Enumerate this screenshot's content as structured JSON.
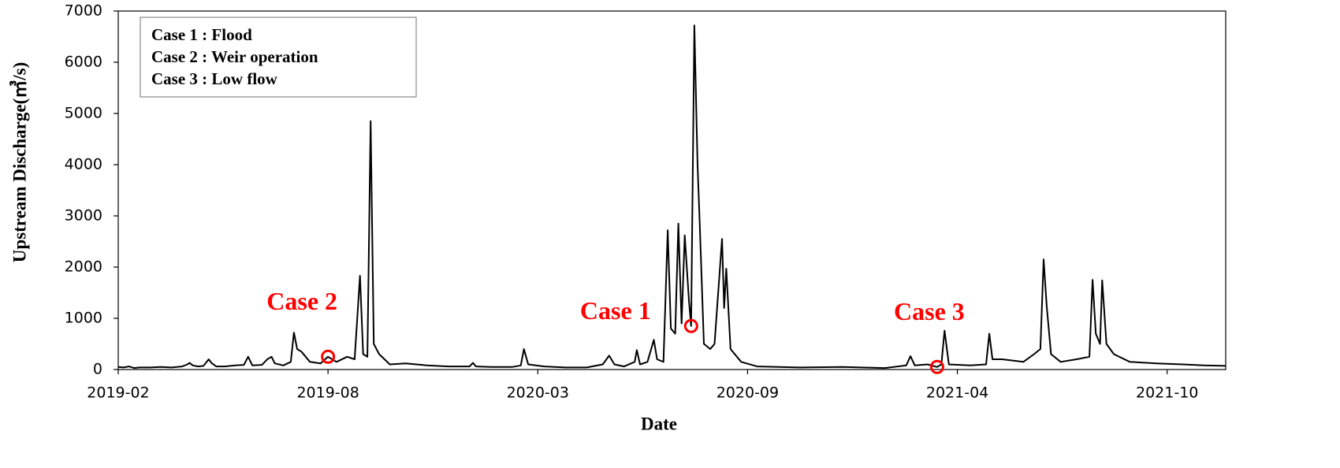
{
  "chart_data": {
    "type": "line",
    "y_label": "Upstream Discharge(㎥/s)",
    "x_label": "Date",
    "legend_text": [
      "Case 1 : Flood",
      "Case 2 : Weir operation",
      "Case 3 : Low flow"
    ],
    "xlim": [
      0,
      1040
    ],
    "xticks": [
      {
        "value": 0,
        "label": "2019-02"
      },
      {
        "value": 197,
        "label": "2019-08"
      },
      {
        "value": 394,
        "label": "2020-03"
      },
      {
        "value": 591,
        "label": "2020-09"
      },
      {
        "value": 788,
        "label": "2021-04"
      },
      {
        "value": 985,
        "label": "2021-10"
      }
    ],
    "ylim": [
      0,
      7000
    ],
    "yticks": [
      0,
      1000,
      2000,
      3000,
      4000,
      5000,
      6000,
      7000
    ],
    "series": [
      {
        "color": "#000000",
        "x": [
          0,
          5,
          10,
          15,
          20,
          30,
          40,
          50,
          60,
          65,
          67,
          70,
          75,
          80,
          85,
          88,
          92,
          100,
          110,
          118,
          122,
          126,
          135,
          140,
          144,
          147,
          155,
          162,
          165,
          168,
          172,
          180,
          190,
          197,
          205,
          215,
          222,
          227,
          230,
          234,
          237,
          240,
          245,
          255,
          270,
          290,
          310,
          330,
          333,
          336,
          350,
          370,
          378,
          381,
          385,
          400,
          420,
          440,
          455,
          461,
          466,
          475,
          485,
          487,
          490,
          497,
          503,
          506,
          512,
          516,
          519,
          523,
          526,
          529,
          532,
          536,
          538,
          541,
          544,
          546,
          550,
          556,
          560,
          567,
          569,
          571,
          575,
          585,
          600,
          640,
          680,
          720,
          740,
          744,
          748,
          760,
          769,
          773,
          776,
          780,
          800,
          815,
          818,
          821,
          830,
          850,
          860,
          866,
          869,
          872,
          876,
          885,
          900,
          912,
          915,
          918,
          922,
          924,
          928,
          935,
          950,
          975,
          1000,
          1020,
          1040
        ],
        "values": [
          50,
          40,
          60,
          30,
          40,
          40,
          50,
          40,
          60,
          100,
          130,
          80,
          60,
          70,
          200,
          120,
          60,
          60,
          80,
          90,
          250,
          80,
          90,
          200,
          250,
          120,
          80,
          150,
          720,
          400,
          350,
          150,
          120,
          250,
          150,
          250,
          200,
          1830,
          300,
          250,
          4850,
          500,
          300,
          100,
          120,
          80,
          60,
          60,
          130,
          60,
          50,
          50,
          80,
          400,
          100,
          60,
          40,
          40,
          100,
          270,
          100,
          60,
          150,
          380,
          100,
          150,
          580,
          200,
          150,
          2720,
          800,
          700,
          2850,
          900,
          2620,
          1330,
          850,
          6720,
          4020,
          2900,
          500,
          400,
          500,
          2550,
          1200,
          1970,
          400,
          150,
          60,
          40,
          50,
          30,
          80,
          260,
          80,
          100,
          50,
          100,
          760,
          100,
          80,
          100,
          700,
          200,
          200,
          150,
          300,
          400,
          2150,
          1220,
          300,
          150,
          200,
          250,
          1750,
          700,
          500,
          1740,
          500,
          300,
          150,
          120,
          100,
          80,
          70
        ]
      }
    ],
    "annotations": [
      {
        "text": "Case 2",
        "x": 197,
        "y": 250,
        "color": "#ff0000"
      },
      {
        "text": "Case 1",
        "x": 538,
        "y": 850,
        "color": "#ff0000"
      },
      {
        "text": "Case 3",
        "x": 769,
        "y": 50,
        "color": "#ff0000"
      }
    ]
  }
}
